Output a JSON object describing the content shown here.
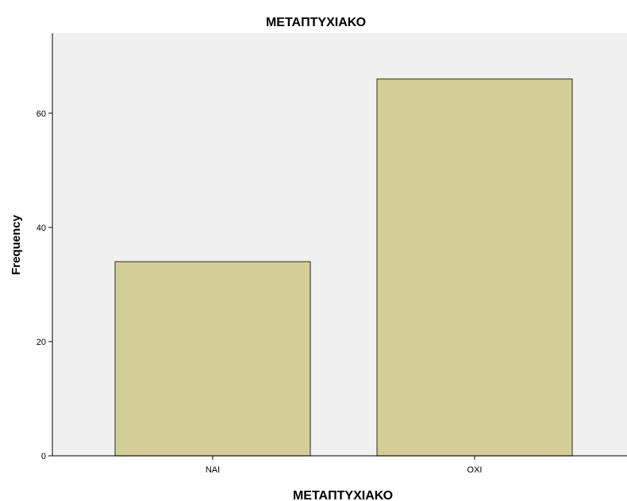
{
  "chart_data": {
    "type": "bar",
    "title": "ΜΕΤΑΠΤΥΧΙΑΚΟ",
    "xlabel": "ΜΕΤΑΠΤΥΧΙΑΚΟ",
    "ylabel": "Frequency",
    "categories": [
      "ΝΑΙ",
      "ΟΧΙ"
    ],
    "values": [
      34,
      66
    ],
    "ylim": [
      0,
      74
    ],
    "yticks": [
      0,
      20,
      40,
      60
    ],
    "grid": false,
    "colors": {
      "plot_background": "#f0f0f0",
      "bar_fill": "#d3ce97",
      "bar_stroke": "#4a4a3a",
      "axis": "#000000"
    }
  }
}
